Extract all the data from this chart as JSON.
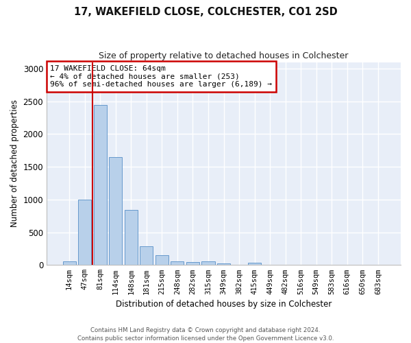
{
  "title": "17, WAKEFIELD CLOSE, COLCHESTER, CO1 2SD",
  "subtitle": "Size of property relative to detached houses in Colchester",
  "xlabel": "Distribution of detached houses by size in Colchester",
  "ylabel": "Number of detached properties",
  "categories": [
    "14sqm",
    "47sqm",
    "81sqm",
    "114sqm",
    "148sqm",
    "181sqm",
    "215sqm",
    "248sqm",
    "282sqm",
    "315sqm",
    "349sqm",
    "382sqm",
    "415sqm",
    "449sqm",
    "482sqm",
    "516sqm",
    "549sqm",
    "583sqm",
    "616sqm",
    "650sqm",
    "683sqm"
  ],
  "values": [
    60,
    1000,
    2450,
    1650,
    840,
    290,
    145,
    55,
    50,
    55,
    25,
    0,
    30,
    0,
    0,
    0,
    0,
    0,
    0,
    0,
    0
  ],
  "bar_color": "#b8d0ea",
  "bar_edge_color": "#6699cc",
  "vline_x": 1.5,
  "vline_color": "#cc0000",
  "annotation_box_text": "17 WAKEFIELD CLOSE: 64sqm\n← 4% of detached houses are smaller (253)\n96% of semi-detached houses are larger (6,189) →",
  "annotation_box_color": "#cc0000",
  "ylim": [
    0,
    3100
  ],
  "yticks": [
    0,
    500,
    1000,
    1500,
    2000,
    2500,
    3000
  ],
  "bg_color": "#e8eef8",
  "grid_color": "#ffffff",
  "footer_line1": "Contains HM Land Registry data © Crown copyright and database right 2024.",
  "footer_line2": "Contains public sector information licensed under the Open Government Licence v3.0."
}
